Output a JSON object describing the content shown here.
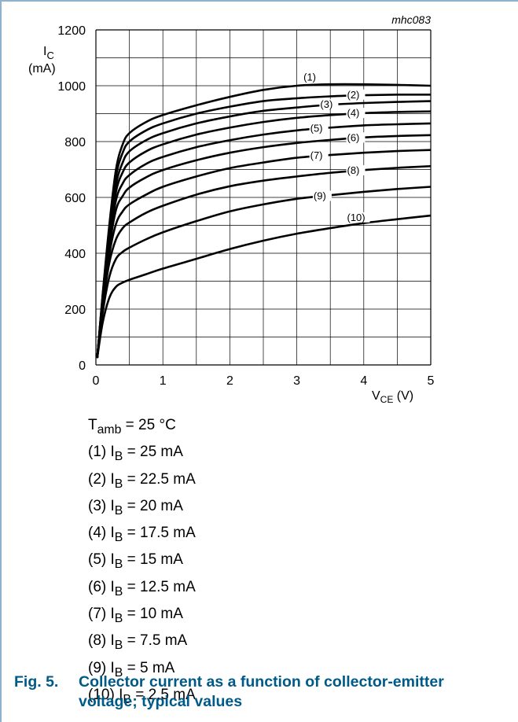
{
  "chart_data": {
    "type": "line",
    "code": "mhc083",
    "ylabel_main": "I",
    "ylabel_sub": "C",
    "yunit": "(mA)",
    "xlabel_main": "V",
    "xlabel_sub": "CE",
    "xunit": " (V)",
    "xlim": [
      0,
      5
    ],
    "ylim": [
      0,
      1200
    ],
    "xticks": [
      "0",
      "1",
      "2",
      "3",
      "4",
      "5"
    ],
    "yticks": [
      "0",
      "200",
      "400",
      "600",
      "800",
      "1000",
      "1200"
    ],
    "grid": true,
    "series": [
      {
        "name": "(1)",
        "points": [
          [
            0.02,
            25
          ],
          [
            0.1,
            250
          ],
          [
            0.2,
            500
          ],
          [
            0.3,
            700
          ],
          [
            0.4,
            790
          ],
          [
            0.5,
            830
          ],
          [
            0.75,
            870
          ],
          [
            1,
            895
          ],
          [
            1.5,
            930
          ],
          [
            2,
            960
          ],
          [
            2.5,
            985
          ],
          [
            3,
            1000
          ],
          [
            3.5,
            1005
          ],
          [
            4,
            1005
          ],
          [
            4.5,
            1003
          ],
          [
            5,
            1000
          ]
        ]
      },
      {
        "name": "(2)",
        "points": [
          [
            0.02,
            25
          ],
          [
            0.1,
            245
          ],
          [
            0.2,
            485
          ],
          [
            0.3,
            675
          ],
          [
            0.4,
            760
          ],
          [
            0.5,
            800
          ],
          [
            0.75,
            840
          ],
          [
            1,
            865
          ],
          [
            1.5,
            900
          ],
          [
            2,
            925
          ],
          [
            2.5,
            945
          ],
          [
            3,
            955
          ],
          [
            3.5,
            962
          ],
          [
            4,
            966
          ],
          [
            4.5,
            968
          ],
          [
            5,
            968
          ]
        ]
      },
      {
        "name": "(3)",
        "points": [
          [
            0.02,
            25
          ],
          [
            0.1,
            240
          ],
          [
            0.2,
            470
          ],
          [
            0.3,
            645
          ],
          [
            0.4,
            725
          ],
          [
            0.5,
            765
          ],
          [
            0.75,
            805
          ],
          [
            1,
            830
          ],
          [
            1.5,
            865
          ],
          [
            2,
            890
          ],
          [
            2.5,
            910
          ],
          [
            3,
            922
          ],
          [
            3.5,
            932
          ],
          [
            4,
            938
          ],
          [
            4.5,
            942
          ],
          [
            5,
            945
          ]
        ]
      },
      {
        "name": "(4)",
        "points": [
          [
            0.02,
            25
          ],
          [
            0.1,
            235
          ],
          [
            0.2,
            455
          ],
          [
            0.3,
            620
          ],
          [
            0.4,
            690
          ],
          [
            0.5,
            725
          ],
          [
            0.75,
            765
          ],
          [
            1,
            790
          ],
          [
            1.5,
            825
          ],
          [
            2,
            850
          ],
          [
            2.5,
            870
          ],
          [
            3,
            885
          ],
          [
            3.5,
            895
          ],
          [
            4,
            902
          ],
          [
            4.5,
            906
          ],
          [
            5,
            908
          ]
        ]
      },
      {
        "name": "(5)",
        "points": [
          [
            0.02,
            25
          ],
          [
            0.1,
            230
          ],
          [
            0.2,
            440
          ],
          [
            0.3,
            590
          ],
          [
            0.4,
            650
          ],
          [
            0.5,
            680
          ],
          [
            0.75,
            720
          ],
          [
            1,
            745
          ],
          [
            1.5,
            780
          ],
          [
            2,
            805
          ],
          [
            2.5,
            825
          ],
          [
            3,
            840
          ],
          [
            3.5,
            850
          ],
          [
            4,
            858
          ],
          [
            4.5,
            862
          ],
          [
            5,
            865
          ]
        ]
      },
      {
        "name": "(6)",
        "points": [
          [
            0.02,
            25
          ],
          [
            0.1,
            225
          ],
          [
            0.2,
            420
          ],
          [
            0.3,
            555
          ],
          [
            0.4,
            605
          ],
          [
            0.5,
            635
          ],
          [
            0.75,
            672
          ],
          [
            1,
            698
          ],
          [
            1.5,
            733
          ],
          [
            2,
            760
          ],
          [
            2.5,
            780
          ],
          [
            3,
            795
          ],
          [
            3.5,
            806
          ],
          [
            4,
            815
          ],
          [
            4.5,
            820
          ],
          [
            5,
            823
          ]
        ]
      },
      {
        "name": "(7)",
        "points": [
          [
            0.02,
            25
          ],
          [
            0.1,
            215
          ],
          [
            0.2,
            395
          ],
          [
            0.3,
            505
          ],
          [
            0.4,
            550
          ],
          [
            0.5,
            575
          ],
          [
            0.75,
            610
          ],
          [
            1,
            638
          ],
          [
            1.5,
            675
          ],
          [
            2,
            705
          ],
          [
            2.5,
            725
          ],
          [
            3,
            742
          ],
          [
            3.5,
            752
          ],
          [
            4,
            760
          ],
          [
            4.5,
            766
          ],
          [
            5,
            770
          ]
        ]
      },
      {
        "name": "(8)",
        "points": [
          [
            0.02,
            25
          ],
          [
            0.1,
            205
          ],
          [
            0.2,
            365
          ],
          [
            0.3,
            450
          ],
          [
            0.4,
            490
          ],
          [
            0.5,
            510
          ],
          [
            0.75,
            545
          ],
          [
            1,
            570
          ],
          [
            1.5,
            610
          ],
          [
            2,
            640
          ],
          [
            2.5,
            660
          ],
          [
            3,
            675
          ],
          [
            3.5,
            688
          ],
          [
            4,
            698
          ],
          [
            4.5,
            706
          ],
          [
            5,
            712
          ]
        ]
      },
      {
        "name": "(9)",
        "points": [
          [
            0.02,
            25
          ],
          [
            0.1,
            185
          ],
          [
            0.2,
            315
          ],
          [
            0.3,
            380
          ],
          [
            0.4,
            405
          ],
          [
            0.5,
            420
          ],
          [
            0.75,
            450
          ],
          [
            1,
            475
          ],
          [
            1.5,
            515
          ],
          [
            2,
            550
          ],
          [
            2.5,
            575
          ],
          [
            3,
            595
          ],
          [
            3.5,
            608
          ],
          [
            4,
            620
          ],
          [
            4.5,
            630
          ],
          [
            5,
            638
          ]
        ]
      },
      {
        "name": "(10)",
        "points": [
          [
            0.02,
            25
          ],
          [
            0.1,
            150
          ],
          [
            0.2,
            240
          ],
          [
            0.3,
            280
          ],
          [
            0.4,
            295
          ],
          [
            0.5,
            305
          ],
          [
            0.75,
            325
          ],
          [
            1,
            345
          ],
          [
            1.5,
            380
          ],
          [
            2,
            415
          ],
          [
            2.5,
            445
          ],
          [
            3,
            470
          ],
          [
            3.5,
            490
          ],
          [
            4,
            508
          ],
          [
            4.5,
            522
          ],
          [
            5,
            535
          ]
        ]
      }
    ]
  },
  "legend": {
    "tamb": {
      "main": "T",
      "sub": "amb",
      "rest": " = 25 °C"
    },
    "items": [
      {
        "prefix": "(1) I",
        "sub": "B",
        "rest": " = 25 mA"
      },
      {
        "prefix": "(2) I",
        "sub": "B",
        "rest": " = 22.5 mA"
      },
      {
        "prefix": "(3) I",
        "sub": "B",
        "rest": " = 20 mA"
      },
      {
        "prefix": "(4) I",
        "sub": "B",
        "rest": " = 17.5 mA"
      },
      {
        "prefix": "(5) I",
        "sub": "B",
        "rest": " = 15 mA"
      },
      {
        "prefix": "(6) I",
        "sub": "B",
        "rest": " = 12.5 mA"
      },
      {
        "prefix": "(7) I",
        "sub": "B",
        "rest": " = 10 mA"
      },
      {
        "prefix": "(8) I",
        "sub": "B",
        "rest": " = 7.5 mA"
      },
      {
        "prefix": "(9) I",
        "sub": "B",
        "rest": " = 5 mA"
      },
      {
        "prefix": "(10) I",
        "sub": "B",
        "rest": " = 2.5 mA"
      }
    ]
  },
  "caption": {
    "number": "Fig. 5.",
    "text": "Collector current as a function of collector-emitter voltage; typical values"
  }
}
